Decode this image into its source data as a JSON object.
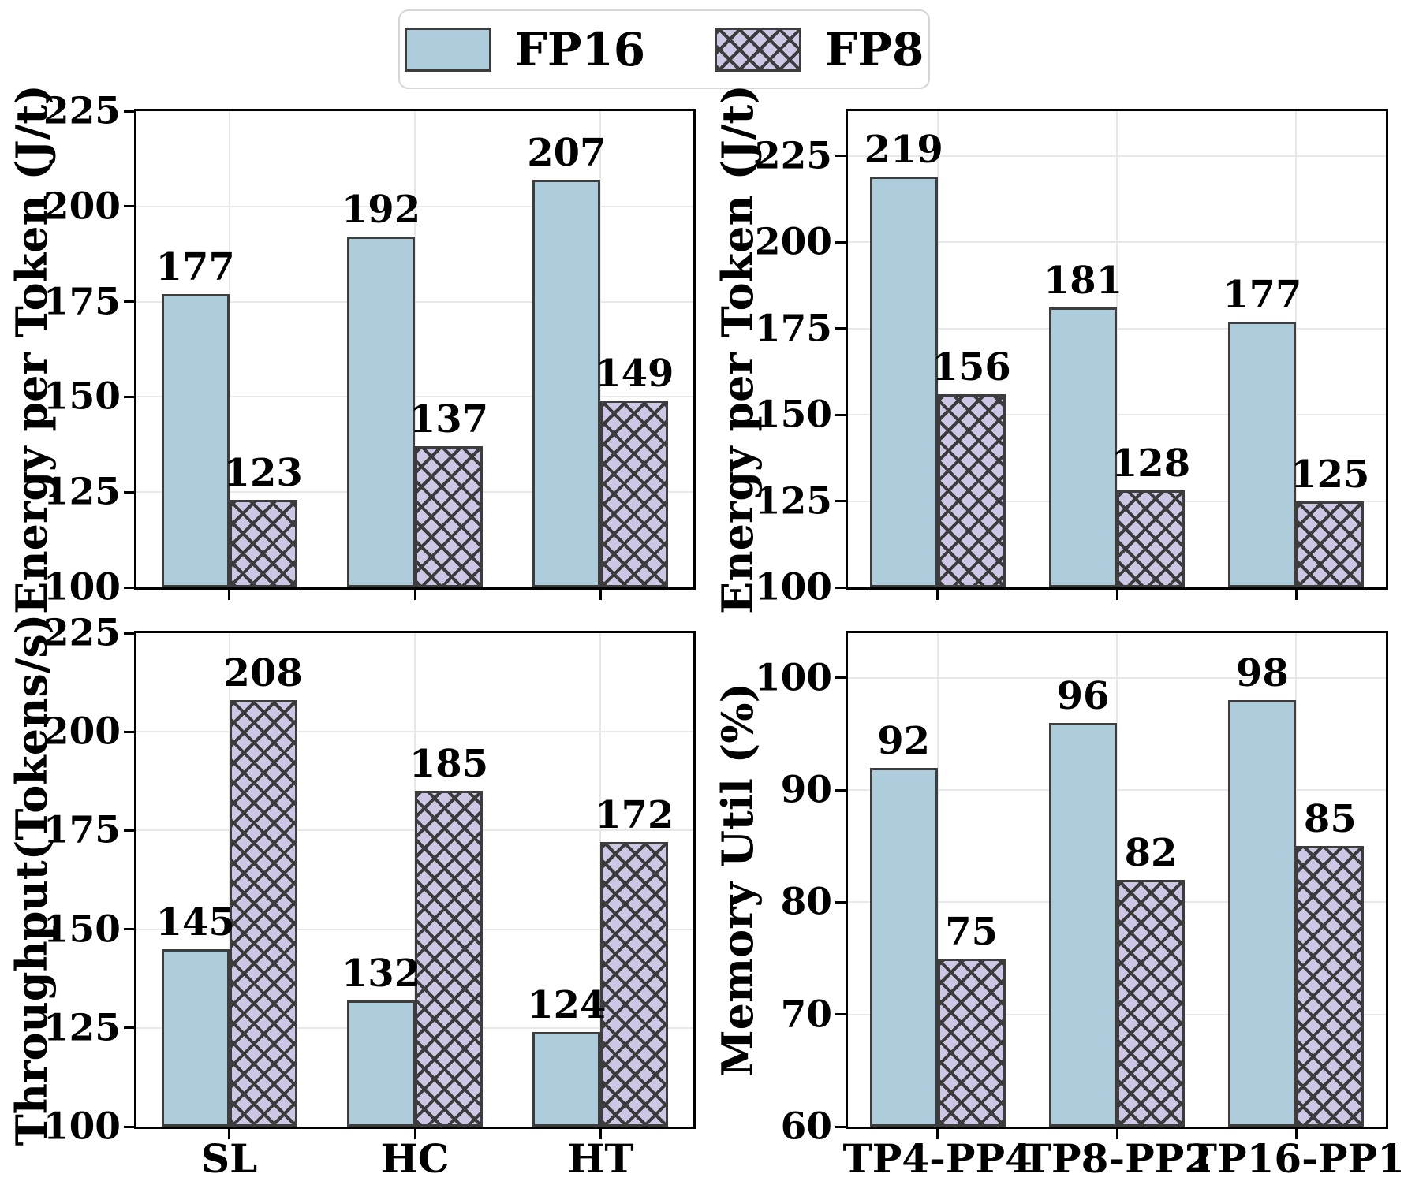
{
  "legend": {
    "position": "top center",
    "items": [
      {
        "label": "FP16",
        "swatch": "fp16-solid-swatch",
        "style": "solid"
      },
      {
        "label": "FP8",
        "swatch": "fp8-crosshatch-swatch",
        "style": "crosshatch"
      }
    ]
  },
  "colors": {
    "fp16_fill": "#adccdc",
    "fp8_fill": "#cdc7e5",
    "hatch_line": "#3b3b3b",
    "bar_edge": "#3d3d3d",
    "grid": "#e8e8e8",
    "spine": "#000000",
    "legend_border": "#d6d6d6",
    "text": "#000000"
  },
  "chart_data": [
    {
      "id": "energy-per-token-workload",
      "type": "bar",
      "title": "",
      "xlabel": "",
      "ylabel": "Energy per Token (J/t)",
      "categories": [
        "SL",
        "HC",
        "HT"
      ],
      "series": [
        {
          "name": "FP16",
          "values": [
            177,
            192,
            207
          ]
        },
        {
          "name": "FP8",
          "values": [
            123,
            137,
            149
          ]
        }
      ],
      "ylim": [
        100,
        225
      ],
      "yticks": [
        100,
        125,
        150,
        175,
        200,
        225
      ],
      "grid": true,
      "show_xticklabels": false,
      "bar_value_labels": true
    },
    {
      "id": "energy-per-token-parallelism",
      "type": "bar",
      "title": "",
      "xlabel": "",
      "ylabel": "Energy per Token (J/t)",
      "categories": [
        "TP4-PP4",
        "TP8-PP2",
        "TP16-PP1"
      ],
      "series": [
        {
          "name": "FP16",
          "values": [
            219,
            181,
            177
          ]
        },
        {
          "name": "FP8",
          "values": [
            156,
            128,
            125
          ]
        }
      ],
      "ylim": [
        100,
        238
      ],
      "yticks": [
        100,
        125,
        150,
        175,
        200,
        225
      ],
      "grid": true,
      "show_xticklabels": false,
      "bar_value_labels": true
    },
    {
      "id": "throughput-workload",
      "type": "bar",
      "title": "",
      "xlabel": "",
      "ylabel": "Throughput(Tokens/s)",
      "categories": [
        "SL",
        "HC",
        "HT"
      ],
      "series": [
        {
          "name": "FP16",
          "values": [
            145,
            132,
            124
          ]
        },
        {
          "name": "FP8",
          "values": [
            208,
            185,
            172
          ]
        }
      ],
      "ylim": [
        100,
        225
      ],
      "yticks": [
        100,
        125,
        150,
        175,
        200,
        225
      ],
      "grid": true,
      "show_xticklabels": true,
      "bar_value_labels": true
    },
    {
      "id": "memory-util-parallelism",
      "type": "bar",
      "title": "",
      "xlabel": "",
      "ylabel": "Memory Util (%)",
      "categories": [
        "TP4-PP4",
        "TP8-PP2",
        "TP16-PP1"
      ],
      "series": [
        {
          "name": "FP16",
          "values": [
            92,
            96,
            98
          ]
        },
        {
          "name": "FP8",
          "values": [
            75,
            82,
            85
          ]
        }
      ],
      "ylim": [
        60,
        104
      ],
      "yticks": [
        60,
        70,
        80,
        90,
        100
      ],
      "grid": true,
      "show_xticklabels": true,
      "bar_value_labels": true
    }
  ]
}
